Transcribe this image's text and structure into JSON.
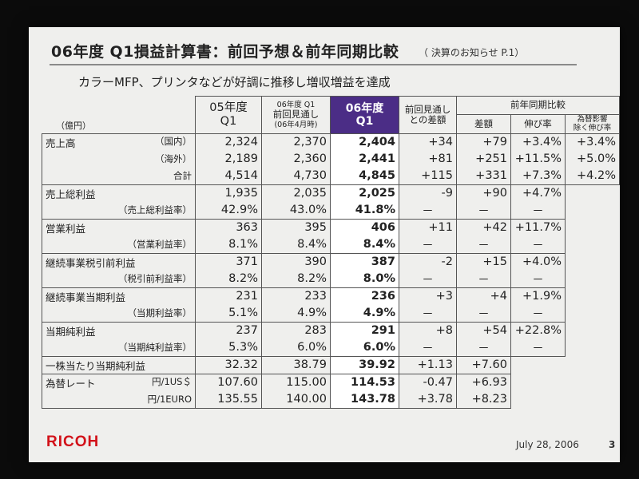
{
  "title": "06年度 Q1損益計算書：前回予想＆前年同期比較",
  "title_ref": "（ 決算のお知らせ P.1）",
  "subtitle": "カラーMFP、プリンタなどが好調に推移し増収増益を達成",
  "unit": "（億円）",
  "headers": {
    "fy05_line1": "05年度",
    "fy05_line2": "Q1",
    "prev_fc_line1": "06年度 Q1",
    "prev_fc_line2": "前回見通し",
    "prev_fc_line3": "(06年4月時)",
    "fy06_line1": "06年度",
    "fy06_line2": "Q1",
    "diff_line1": "前回見通し",
    "diff_line2": "との差額",
    "yoy": "前年同期比較",
    "yoy_amount": "差額",
    "yoy_growth": "伸び率",
    "fx_line1": "為替影響",
    "fx_line2": "除く伸び率"
  },
  "rows": {
    "sales_dom": {
      "label": "売上高",
      "sub": "（国内）",
      "fy05": "2,324",
      "prev": "2,370",
      "fy06": "2,404",
      "diff": "+34",
      "amt": "+79",
      "growth": "+3.4%",
      "fx": "+3.4%"
    },
    "sales_ovs": {
      "sub": "（海外）",
      "fy05": "2,189",
      "prev": "2,360",
      "fy06": "2,441",
      "diff": "+81",
      "amt": "+251",
      "growth": "+11.5%",
      "fx": "+5.0%"
    },
    "sales_total": {
      "sub": "合計",
      "fy05": "4,514",
      "prev": "4,730",
      "fy06": "4,845",
      "diff": "+115",
      "amt": "+331",
      "growth": "+7.3%",
      "fx": "+4.2%"
    },
    "gross": {
      "label": "売上総利益",
      "fy05": "1,935",
      "prev": "2,035",
      "fy06": "2,025",
      "diff": "-9",
      "amt": "+90",
      "growth": "+4.7%"
    },
    "gross_r": {
      "sub": "（売上総利益率）",
      "fy05": "42.9%",
      "prev": "43.0%",
      "fy06": "41.8%",
      "diff": "－",
      "amt": "－",
      "growth": "－"
    },
    "op": {
      "label": "営業利益",
      "fy05": "363",
      "prev": "395",
      "fy06": "406",
      "diff": "+11",
      "amt": "+42",
      "growth": "+11.7%"
    },
    "op_r": {
      "sub": "（営業利益率）",
      "fy05": "8.1%",
      "prev": "8.4%",
      "fy06": "8.4%",
      "diff": "－",
      "amt": "－",
      "growth": "－"
    },
    "pre": {
      "label": "継続事業税引前利益",
      "fy05": "371",
      "prev": "390",
      "fy06": "387",
      "diff": "-2",
      "amt": "+15",
      "growth": "+4.0%"
    },
    "pre_r": {
      "sub": "（税引前利益率）",
      "fy05": "8.2%",
      "prev": "8.2%",
      "fy06": "8.0%",
      "diff": "－",
      "amt": "－",
      "growth": "－"
    },
    "cont": {
      "label": "継続事業当期利益",
      "fy05": "231",
      "prev": "233",
      "fy06": "236",
      "diff": "+3",
      "amt": "+4",
      "growth": "+1.9%"
    },
    "cont_r": {
      "sub": "（当期利益率）",
      "fy05": "5.1%",
      "prev": "4.9%",
      "fy06": "4.9%",
      "diff": "－",
      "amt": "－",
      "growth": "－"
    },
    "net": {
      "label": "当期純利益",
      "fy05": "237",
      "prev": "283",
      "fy06": "291",
      "diff": "+8",
      "amt": "+54",
      "growth": "+22.8%"
    },
    "net_r": {
      "sub": "（当期純利益率）",
      "fy05": "5.3%",
      "prev": "6.0%",
      "fy06": "6.0%",
      "diff": "－",
      "amt": "－",
      "growth": "－"
    },
    "eps": {
      "label": "一株当たり当期純利益",
      "fy05": "32.32",
      "prev": "38.79",
      "fy06": "39.92",
      "diff": "+1.13",
      "amt": "+7.60"
    },
    "fx_usd": {
      "label": "為替レート",
      "sub": "円/1US＄",
      "fy05": "107.60",
      "prev": "115.00",
      "fy06": "114.53",
      "diff": "-0.47",
      "amt": "+6.93"
    },
    "fx_eur": {
      "sub": "円/1EURO",
      "fy05": "135.55",
      "prev": "140.00",
      "fy06": "143.78",
      "diff": "+3.78",
      "amt": "+8.23"
    }
  },
  "footer": {
    "logo": "RICOH",
    "date": "July 28, 2006",
    "page": "3"
  }
}
